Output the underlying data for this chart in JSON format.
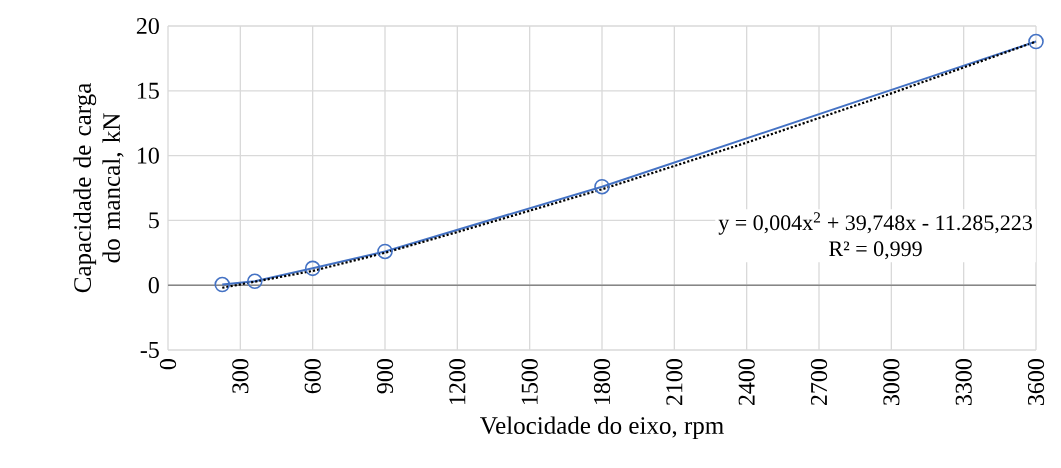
{
  "chart_data": {
    "type": "line",
    "xlabel": "Velocidade do eixo, rpm",
    "ylabel": "Capacidade de carga do mancal, kN",
    "xlim": [
      0,
      3600
    ],
    "xticks": [
      0,
      300,
      600,
      900,
      1200,
      1500,
      1800,
      2100,
      2400,
      2700,
      3000,
      3300,
      3600
    ],
    "ylim": [
      -5,
      20
    ],
    "yticks": [
      -5,
      0,
      5,
      10,
      15,
      20
    ],
    "grid": true,
    "marker": "circle",
    "line_style": "solid",
    "x": [
      225,
      360,
      600,
      900,
      1800,
      3600
    ],
    "series": [
      {
        "color": "#4472c4",
        "values": [
          0.05,
          0.3,
          1.3,
          2.6,
          7.6,
          18.8
        ]
      },
      {
        "color": "#000000",
        "marker": "none",
        "line_style": "dotted",
        "x": [
          225,
          600,
          900,
          1200,
          1800,
          2400,
          3000,
          3600
        ],
        "values": [
          -0.2,
          1.1,
          2.5,
          4.1,
          7.4,
          11.0,
          14.8,
          18.8
        ]
      }
    ],
    "annotations": [
      "y = 0,004x$^{2}$ + 39,748x - 11.285,223",
      "R² = 0,999"
    ]
  }
}
